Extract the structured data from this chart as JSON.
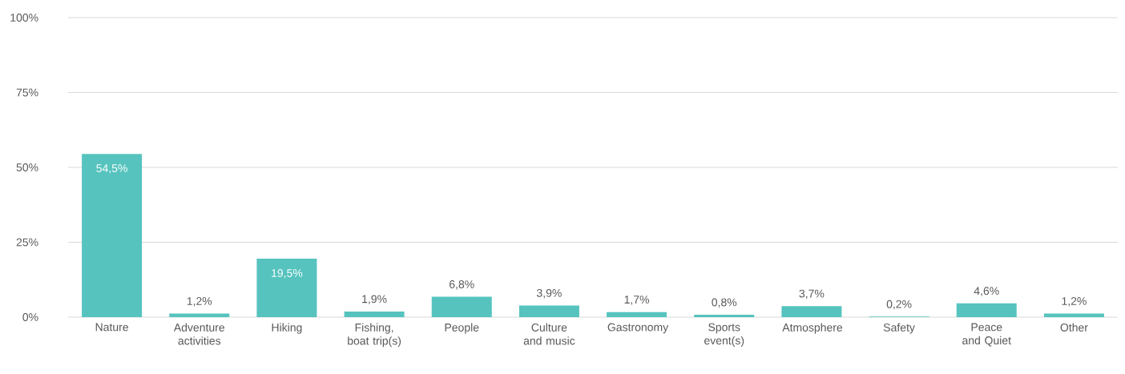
{
  "chart_data": {
    "type": "bar",
    "categories": [
      "Nature",
      "Adventure activities",
      "Hiking",
      "Fishing, boat trip(s)",
      "People",
      "Culture and music",
      "Gastronomy",
      "Sports event(s)",
      "Atmosphere",
      "Safety",
      "Peace and Quiet",
      "Other"
    ],
    "values": [
      54.5,
      1.2,
      19.5,
      1.9,
      6.8,
      3.9,
      1.7,
      0.8,
      3.7,
      0.2,
      4.6,
      1.2
    ],
    "value_labels": [
      "54,5%",
      "1,2%",
      "19,5%",
      "1,9%",
      "6,8%",
      "3,9%",
      "1,7%",
      "0,8%",
      "3,7%",
      "0,2%",
      "4,6%",
      "1,2%"
    ],
    "color": "#56c3be",
    "ylim": [
      0,
      100
    ],
    "yticks": [
      {
        "value": 0,
        "label": "0%"
      },
      {
        "value": 25,
        "label": "25%"
      },
      {
        "value": 50,
        "label": "50%"
      },
      {
        "value": 75,
        "label": "75%"
      },
      {
        "value": 100,
        "label": "100%"
      }
    ],
    "grid": "y"
  }
}
